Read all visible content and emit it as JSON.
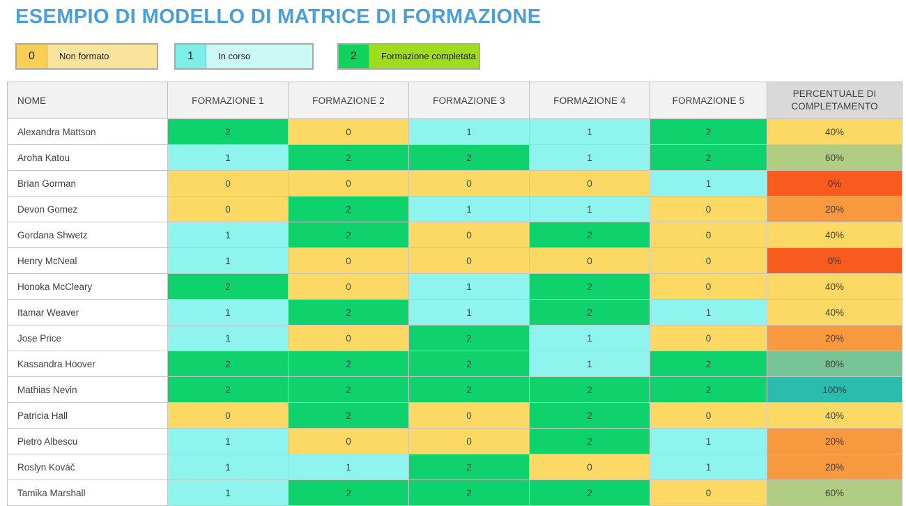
{
  "page": {
    "title": "ESEMPIO DI MODELLO DI MATRICE DI FORMAZIONE"
  },
  "legend": [
    {
      "value": "0",
      "label": "Non formato",
      "value_bg": "#F9CF55",
      "label_bg": "#FAE49B"
    },
    {
      "value": "1",
      "label": "In corso",
      "value_bg": "#7EEFE7",
      "label_bg": "#CAF8F5"
    },
    {
      "value": "2",
      "label": "Formazione completata",
      "value_bg": "#12D25F",
      "label_bg": "#9FDC1C"
    }
  ],
  "table": {
    "headers": [
      "NOME",
      "FORMAZIONE 1",
      "FORMAZIONE 2",
      "FORMAZIONE 3",
      "FORMAZIONE 4",
      "FORMAZIONE 5",
      "PERCENTUALE DI COMPLETAMENTO"
    ],
    "rows": [
      {
        "name": "Alexandra Mattson",
        "scores": [
          2,
          0,
          1,
          1,
          2
        ],
        "completion": "40%"
      },
      {
        "name": "Aroha Katou",
        "scores": [
          1,
          2,
          2,
          1,
          2
        ],
        "completion": "60%"
      },
      {
        "name": "Brian Gorman",
        "scores": [
          0,
          0,
          0,
          0,
          1
        ],
        "completion": "0%"
      },
      {
        "name": "Devon Gomez",
        "scores": [
          0,
          2,
          1,
          1,
          0
        ],
        "completion": "20%"
      },
      {
        "name": "Gordana Shwetz",
        "scores": [
          1,
          2,
          0,
          2,
          0
        ],
        "completion": "40%"
      },
      {
        "name": "Henry McNeal",
        "scores": [
          1,
          0,
          0,
          0,
          0
        ],
        "completion": "0%"
      },
      {
        "name": "Honoka McCleary",
        "scores": [
          2,
          0,
          1,
          2,
          0
        ],
        "completion": "40%"
      },
      {
        "name": "Itamar Weaver",
        "scores": [
          1,
          2,
          1,
          2,
          1
        ],
        "completion": "40%"
      },
      {
        "name": "Jose Price",
        "scores": [
          1,
          0,
          2,
          1,
          0
        ],
        "completion": "20%"
      },
      {
        "name": "Kassandra Hoover",
        "scores": [
          2,
          2,
          2,
          1,
          2
        ],
        "completion": "80%"
      },
      {
        "name": "Mathias Nevin",
        "scores": [
          2,
          2,
          2,
          2,
          2
        ],
        "completion": "100%"
      },
      {
        "name": "Patricia Hall",
        "scores": [
          0,
          2,
          0,
          2,
          0
        ],
        "completion": "40%"
      },
      {
        "name": "Pietro Albescu",
        "scores": [
          1,
          0,
          0,
          2,
          1
        ],
        "completion": "20%"
      },
      {
        "name": "Roslyn Kováč",
        "scores": [
          1,
          1,
          2,
          0,
          1
        ],
        "completion": "20%"
      },
      {
        "name": "Tamika Marshall",
        "scores": [
          1,
          2,
          2,
          2,
          0
        ],
        "completion": "60%"
      }
    ]
  },
  "colors": {
    "title": "#4B9FD9",
    "score_0": "#FBD964",
    "score_1": "#8FF3EE",
    "score_2": "#0FD26C",
    "completion": {
      "0%": "#F95A1D",
      "20%": "#F9993F",
      "40%": "#FBD964",
      "60%": "#B1CD84",
      "80%": "#77C596",
      "100%": "#2ABCAC"
    },
    "header_bg": "#F2F2F2",
    "header_last_bg": "#D9D9D9"
  }
}
